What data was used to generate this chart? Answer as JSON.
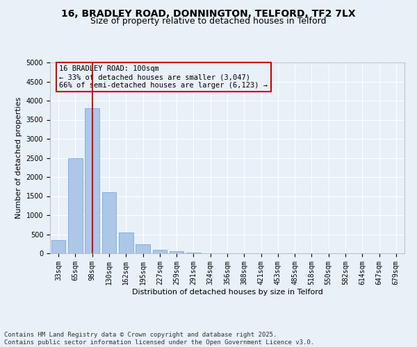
{
  "title_line1": "16, BRADLEY ROAD, DONNINGTON, TELFORD, TF2 7LX",
  "title_line2": "Size of property relative to detached houses in Telford",
  "xlabel": "Distribution of detached houses by size in Telford",
  "ylabel": "Number of detached properties",
  "categories": [
    "33sqm",
    "65sqm",
    "98sqm",
    "130sqm",
    "162sqm",
    "195sqm",
    "227sqm",
    "259sqm",
    "291sqm",
    "324sqm",
    "356sqm",
    "388sqm",
    "421sqm",
    "453sqm",
    "485sqm",
    "518sqm",
    "550sqm",
    "582sqm",
    "614sqm",
    "647sqm",
    "679sqm"
  ],
  "values": [
    350,
    2500,
    3800,
    1600,
    550,
    230,
    100,
    60,
    20,
    5,
    2,
    1,
    0,
    0,
    0,
    0,
    0,
    0,
    0,
    0,
    0
  ],
  "bar_color": "#aec6e8",
  "bar_edge_color": "#6a9fd4",
  "bg_color": "#e8f0f8",
  "grid_color": "#ffffff",
  "red_line_index": 2,
  "red_line_color": "#cc0000",
  "annotation_text": "16 BRADLEY ROAD: 100sqm\n← 33% of detached houses are smaller (3,047)\n66% of semi-detached houses are larger (6,123) →",
  "annotation_box_color": "#cc0000",
  "ylim": [
    0,
    5000
  ],
  "yticks": [
    0,
    500,
    1000,
    1500,
    2000,
    2500,
    3000,
    3500,
    4000,
    4500,
    5000
  ],
  "footnote1": "Contains HM Land Registry data © Crown copyright and database right 2025.",
  "footnote2": "Contains public sector information licensed under the Open Government Licence v3.0.",
  "title_fontsize": 10,
  "subtitle_fontsize": 9,
  "axis_label_fontsize": 8,
  "tick_fontsize": 7,
  "annotation_fontsize": 7.5,
  "footnote_fontsize": 6.5
}
